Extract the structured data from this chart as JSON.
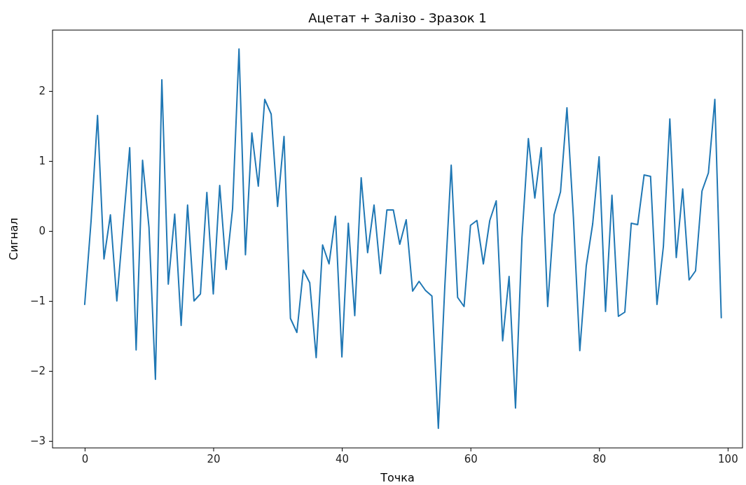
{
  "chart_data": {
    "type": "line",
    "title": "Ацетат + Залізо - Зразок 1",
    "xlabel": "Точка",
    "ylabel": "Сигнал",
    "x": [
      0,
      1,
      2,
      3,
      4,
      5,
      6,
      7,
      8,
      9,
      10,
      11,
      12,
      13,
      14,
      15,
      16,
      17,
      18,
      19,
      20,
      21,
      22,
      23,
      24,
      25,
      26,
      27,
      28,
      29,
      30,
      31,
      32,
      33,
      34,
      35,
      36,
      37,
      38,
      39,
      40,
      41,
      42,
      43,
      44,
      45,
      46,
      47,
      48,
      49,
      50,
      51,
      52,
      53,
      54,
      55,
      56,
      57,
      58,
      59,
      60,
      61,
      62,
      63,
      64,
      65,
      66,
      67,
      68,
      69,
      70,
      71,
      72,
      73,
      74,
      75,
      76,
      77,
      78,
      79,
      80,
      81,
      82,
      83,
      84,
      85,
      86,
      87,
      88,
      89,
      90,
      91,
      92,
      93,
      94,
      95,
      96,
      97,
      98,
      99
    ],
    "series": [
      {
        "color": "#1f77b4",
        "values": [
          -1.05,
          0.15,
          1.65,
          -0.4,
          0.23,
          -1.0,
          0.1,
          1.19,
          -1.7,
          1.01,
          0.05,
          -2.12,
          2.16,
          -0.76,
          0.24,
          -1.35,
          0.37,
          -1.0,
          -0.9,
          0.55,
          -0.9,
          0.65,
          -0.55,
          0.32,
          2.6,
          -0.34,
          1.4,
          0.64,
          1.88,
          1.67,
          0.35,
          1.35,
          -1.25,
          -1.45,
          -0.56,
          -0.74,
          -1.81,
          -0.2,
          -0.47,
          0.21,
          -1.8,
          0.11,
          -1.21,
          0.76,
          -0.31,
          0.37,
          -0.61,
          0.3,
          0.3,
          -0.19,
          0.16,
          -0.86,
          -0.72,
          -0.85,
          -0.93,
          -2.82,
          -0.8,
          0.94,
          -0.95,
          -1.08,
          0.08,
          0.15,
          -0.47,
          0.15,
          0.43,
          -1.57,
          -0.65,
          -2.53,
          -0.1,
          1.32,
          0.47,
          1.19,
          -1.08,
          0.23,
          0.56,
          1.76,
          0.2,
          -1.71,
          -0.5,
          0.1,
          1.06,
          -1.15,
          0.51,
          -1.22,
          -1.16,
          0.11,
          0.09,
          0.8,
          0.78,
          -1.05,
          -0.22,
          1.6,
          -0.38,
          0.6,
          -0.7,
          -0.57,
          0.57,
          0.83,
          1.88,
          -1.24
        ]
      }
    ],
    "xlim": [
      -5,
      102.3
    ],
    "ylim": [
      -3.1,
      2.87
    ],
    "xticks": [
      0,
      20,
      40,
      60,
      80,
      100
    ],
    "yticks": [
      {
        "value": -3,
        "label": "−3"
      },
      {
        "value": -2,
        "label": "−2"
      },
      {
        "value": -1,
        "label": "−1"
      },
      0,
      1,
      2
    ]
  }
}
